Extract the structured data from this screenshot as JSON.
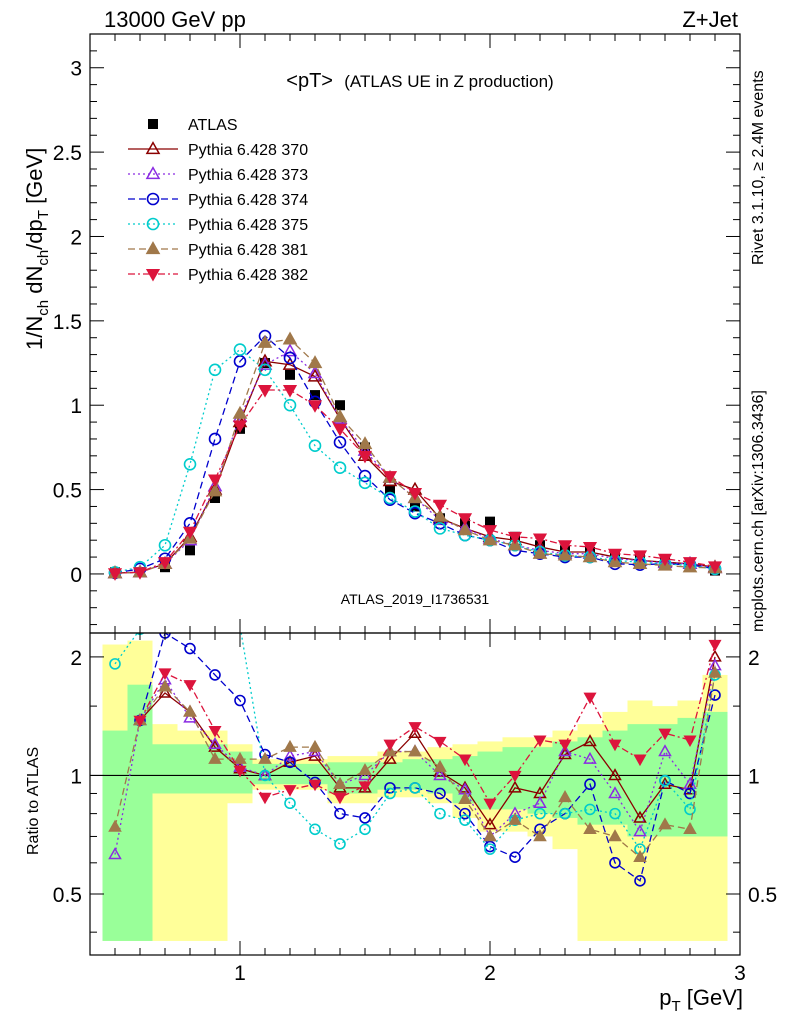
{
  "header": {
    "left": "13000 GeV pp",
    "right": "Z+Jet"
  },
  "title": "<pT> (ATLAS UE in Z production)",
  "title_main": "<pT>",
  "title_sub": "(ATLAS UE in Z production)",
  "side_label_top": "Rivet 3.1.10, ≥ 2.4M events",
  "side_label_bottom": "mcplots.cern.ch [arXiv:1306.3436]",
  "watermark": "ATLAS_2019_I1736531",
  "ylabel_main": "1/N_ch dN_ch/dp_T [GeV]",
  "ylabel_ratio": "Ratio to ATLAS",
  "xlabel": "p_T [GeV]",
  "chart_data": {
    "type": "scatter",
    "x": [
      0.5,
      0.6,
      0.7,
      0.8,
      0.9,
      1.0,
      1.1,
      1.2,
      1.3,
      1.4,
      1.5,
      1.6,
      1.7,
      1.8,
      1.9,
      2.0,
      2.1,
      2.2,
      2.3,
      2.4,
      2.5,
      2.6,
      2.7,
      2.8,
      2.9
    ],
    "xlim": [
      0.4,
      3.0
    ],
    "ylim": [
      -0.35,
      3.2
    ],
    "ratio_ylim": [
      0.35,
      2.3
    ],
    "x_ticks": [
      1,
      2,
      3
    ],
    "y_ticks": [
      0,
      0.5,
      1,
      1.5,
      2,
      2.5,
      3
    ],
    "ratio_ticks": [
      0.5,
      1,
      2
    ],
    "grid": false,
    "legend": "top-left",
    "series": [
      {
        "name": "ATLAS",
        "color": "#000000",
        "marker": "square",
        "dash": "none",
        "values": [
          0.01,
          0.01,
          0.04,
          0.14,
          0.45,
          0.86,
          1.25,
          1.18,
          1.06,
          1.0,
          0.75,
          0.5,
          0.4,
          0.33,
          0.3,
          0.31,
          0.22,
          0.17,
          0.14,
          0.13,
          0.1,
          0.1,
          0.07,
          0.06,
          0.02
        ]
      },
      {
        "name": "Pythia 6.428 370",
        "color": "#8b0000",
        "marker": "triangle-open",
        "dash": "none",
        "values": [
          0.005,
          0.01,
          0.06,
          0.22,
          0.5,
          0.9,
          1.26,
          1.24,
          1.17,
          0.92,
          0.7,
          0.55,
          0.5,
          0.33,
          0.27,
          0.22,
          0.2,
          0.16,
          0.13,
          0.13,
          0.1,
          0.08,
          0.07,
          0.06,
          0.04
        ]
      },
      {
        "name": "Pythia 6.428 373",
        "color": "#8a2be2",
        "marker": "triangle-open",
        "dash": "dot",
        "values": [
          0.004,
          0.01,
          0.06,
          0.2,
          0.52,
          0.93,
          1.24,
          1.32,
          1.19,
          0.92,
          0.73,
          0.57,
          0.45,
          0.32,
          0.27,
          0.21,
          0.17,
          0.14,
          0.12,
          0.12,
          0.09,
          0.08,
          0.065,
          0.06,
          0.035
        ]
      },
      {
        "name": "Pythia 6.428 374",
        "color": "#0000cd",
        "marker": "circle-open",
        "dash": "dash",
        "values": [
          0.006,
          0.03,
          0.09,
          0.3,
          0.8,
          1.26,
          1.41,
          1.28,
          1.02,
          0.78,
          0.58,
          0.44,
          0.36,
          0.3,
          0.23,
          0.2,
          0.14,
          0.12,
          0.1,
          0.1,
          0.06,
          0.055,
          0.06,
          0.055,
          0.03
        ]
      },
      {
        "name": "Pythia 6.428 375",
        "color": "#00cccc",
        "marker": "circle-open",
        "dash": "dot",
        "values": [
          0.01,
          0.04,
          0.17,
          0.65,
          1.21,
          1.33,
          1.21,
          1.0,
          0.76,
          0.63,
          0.54,
          0.45,
          0.37,
          0.27,
          0.23,
          0.2,
          0.17,
          0.13,
          0.11,
          0.1,
          0.08,
          0.07,
          0.06,
          0.05,
          0.03
        ]
      },
      {
        "name": "Pythia 6.428 381",
        "color": "#a0784a",
        "marker": "triangle-filled",
        "dash": "dash",
        "values": [
          0.004,
          0.01,
          0.06,
          0.21,
          0.49,
          0.95,
          1.37,
          1.39,
          1.25,
          0.93,
          0.77,
          0.57,
          0.45,
          0.34,
          0.26,
          0.2,
          0.17,
          0.12,
          0.11,
          0.1,
          0.07,
          0.06,
          0.05,
          0.04,
          0.035
        ]
      },
      {
        "name": "Pythia 6.428 382",
        "color": "#dc143c",
        "marker": "triangle-down-filled",
        "dash": "dashdot",
        "values": [
          0.004,
          0.01,
          0.07,
          0.25,
          0.56,
          0.88,
          1.09,
          1.09,
          1.0,
          0.86,
          0.7,
          0.58,
          0.48,
          0.41,
          0.33,
          0.26,
          0.22,
          0.21,
          0.17,
          0.16,
          0.12,
          0.11,
          0.09,
          0.07,
          0.045
        ]
      }
    ],
    "ratio_series": [
      {
        "name": "Pythia 6.428 370",
        "values": [
          null,
          1.38,
          1.62,
          1.45,
          1.18,
          1.04,
          1.0,
          1.08,
          1.12,
          0.93,
          0.93,
          1.1,
          1.28,
          1.02,
          0.93,
          0.75,
          0.93,
          0.9,
          1.13,
          1.22,
          1.0,
          0.78,
          0.95,
          0.92,
          2.0
        ]
      },
      {
        "name": "Pythia 6.428 373",
        "values": [
          0.63,
          1.38,
          1.75,
          1.4,
          1.2,
          1.05,
          1.0,
          1.12,
          1.15,
          0.95,
          1.0,
          1.15,
          1.15,
          1.0,
          0.92,
          0.7,
          0.8,
          0.85,
          1.15,
          1.1,
          0.9,
          0.72,
          1.15,
          0.95,
          1.9
        ]
      },
      {
        "name": "Pythia 6.428 374",
        "values": [
          null,
          1.38,
          2.3,
          2.1,
          1.8,
          1.55,
          1.13,
          1.08,
          0.96,
          0.8,
          0.78,
          0.93,
          0.93,
          0.9,
          0.8,
          0.66,
          0.62,
          0.73,
          0.8,
          0.95,
          0.6,
          0.54,
          0.97,
          0.9,
          1.6
        ]
      },
      {
        "name": "Pythia 6.428 375",
        "values": [
          1.92,
          2.35,
          2.4,
          2.4,
          2.4,
          2.4,
          1.0,
          0.85,
          0.73,
          0.67,
          0.73,
          0.9,
          0.93,
          0.8,
          0.77,
          0.65,
          0.77,
          0.8,
          0.8,
          0.82,
          0.8,
          0.65,
          0.97,
          0.82,
          1.8
        ]
      },
      {
        "name": "Pythia 6.428 381",
        "values": [
          0.74,
          1.38,
          1.68,
          1.45,
          1.1,
          1.1,
          1.1,
          1.18,
          1.18,
          0.95,
          1.03,
          1.15,
          1.15,
          1.05,
          0.87,
          0.7,
          0.77,
          0.7,
          0.88,
          0.73,
          0.7,
          0.62,
          0.75,
          0.73,
          1.82
        ]
      },
      {
        "name": "Pythia 6.428 382",
        "values": [
          null,
          1.38,
          1.82,
          1.7,
          1.3,
          1.03,
          0.88,
          0.92,
          0.95,
          0.88,
          0.94,
          1.2,
          1.33,
          1.22,
          1.1,
          0.85,
          1.0,
          1.23,
          1.2,
          1.58,
          1.2,
          1.1,
          1.28,
          1.23,
          2.15
        ]
      }
    ],
    "ratio_bands": {
      "green_lo": [
        0.38,
        0.38,
        0.9,
        0.9,
        0.9,
        0.9,
        0.95,
        0.95,
        0.95,
        0.9,
        0.9,
        0.92,
        0.92,
        0.9,
        0.85,
        0.82,
        0.82,
        0.8,
        0.78,
        0.75,
        0.75,
        0.7,
        0.7,
        0.7,
        0.7
      ],
      "green_hi": [
        1.3,
        1.7,
        1.2,
        1.2,
        1.2,
        1.15,
        1.07,
        1.07,
        1.07,
        1.08,
        1.08,
        1.08,
        1.1,
        1.1,
        1.12,
        1.15,
        1.18,
        1.18,
        1.22,
        1.25,
        1.3,
        1.35,
        1.35,
        1.4,
        1.45
      ],
      "yellow_lo": [
        0.38,
        0.38,
        0.38,
        0.38,
        0.38,
        0.85,
        0.92,
        0.92,
        0.92,
        0.85,
        0.85,
        0.88,
        0.88,
        0.85,
        0.78,
        0.72,
        0.72,
        0.7,
        0.65,
        0.38,
        0.38,
        0.38,
        0.38,
        0.38,
        0.38
      ],
      "yellow_hi": [
        2.15,
        2.2,
        1.35,
        1.3,
        1.3,
        1.2,
        1.1,
        1.1,
        1.1,
        1.12,
        1.12,
        1.15,
        1.15,
        1.18,
        1.2,
        1.22,
        1.25,
        1.25,
        1.3,
        1.35,
        1.45,
        1.55,
        1.5,
        1.55,
        1.8
      ]
    }
  }
}
